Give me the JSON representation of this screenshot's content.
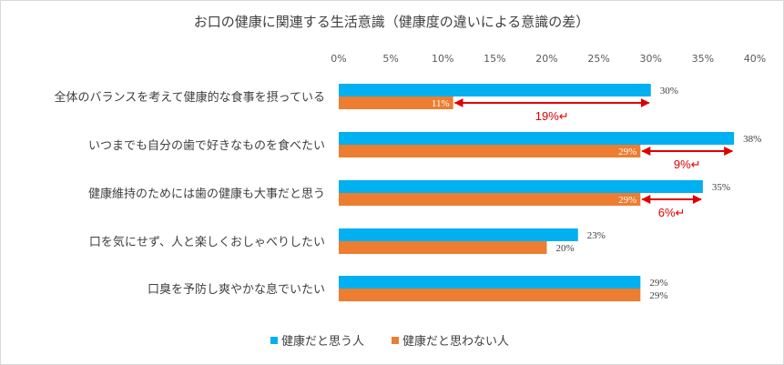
{
  "chart_data": {
    "type": "bar",
    "orientation": "horizontal",
    "title": "お口の健康に関連する生活意識（健康度の違いによる意識の差）",
    "categories": [
      "全体のバランスを考えて健康的な食事を摂っている",
      "いつまでも自分の歯で好きなものを食べたい",
      "健康維持のためには歯の健康も大事だと思う",
      "口を気にせず、人と楽しくおしゃべりしたい",
      "口臭を予防し爽やかな息でいたい"
    ],
    "series": [
      {
        "name": "健康だと思う人",
        "color": "#00b0f0",
        "values": [
          30,
          38,
          35,
          23,
          29
        ]
      },
      {
        "name": "健康だと思わない人",
        "color": "#ed7d31",
        "values": [
          11,
          29,
          29,
          20,
          29
        ]
      }
    ],
    "xlim": [
      0,
      40
    ],
    "xticks": [
      0,
      5,
      10,
      15,
      20,
      25,
      30,
      35,
      40
    ],
    "tick_suffix": "%",
    "legend_position": "bottom",
    "annotations": [
      {
        "category_index": 0,
        "from": 11,
        "to": 30,
        "label": "19%↵",
        "color": "#e00000"
      },
      {
        "category_index": 1,
        "from": 29,
        "to": 38,
        "label": "9%↵",
        "color": "#e00000"
      },
      {
        "category_index": 2,
        "from": 29,
        "to": 35,
        "label": "6%↵",
        "color": "#e00000"
      }
    ]
  }
}
